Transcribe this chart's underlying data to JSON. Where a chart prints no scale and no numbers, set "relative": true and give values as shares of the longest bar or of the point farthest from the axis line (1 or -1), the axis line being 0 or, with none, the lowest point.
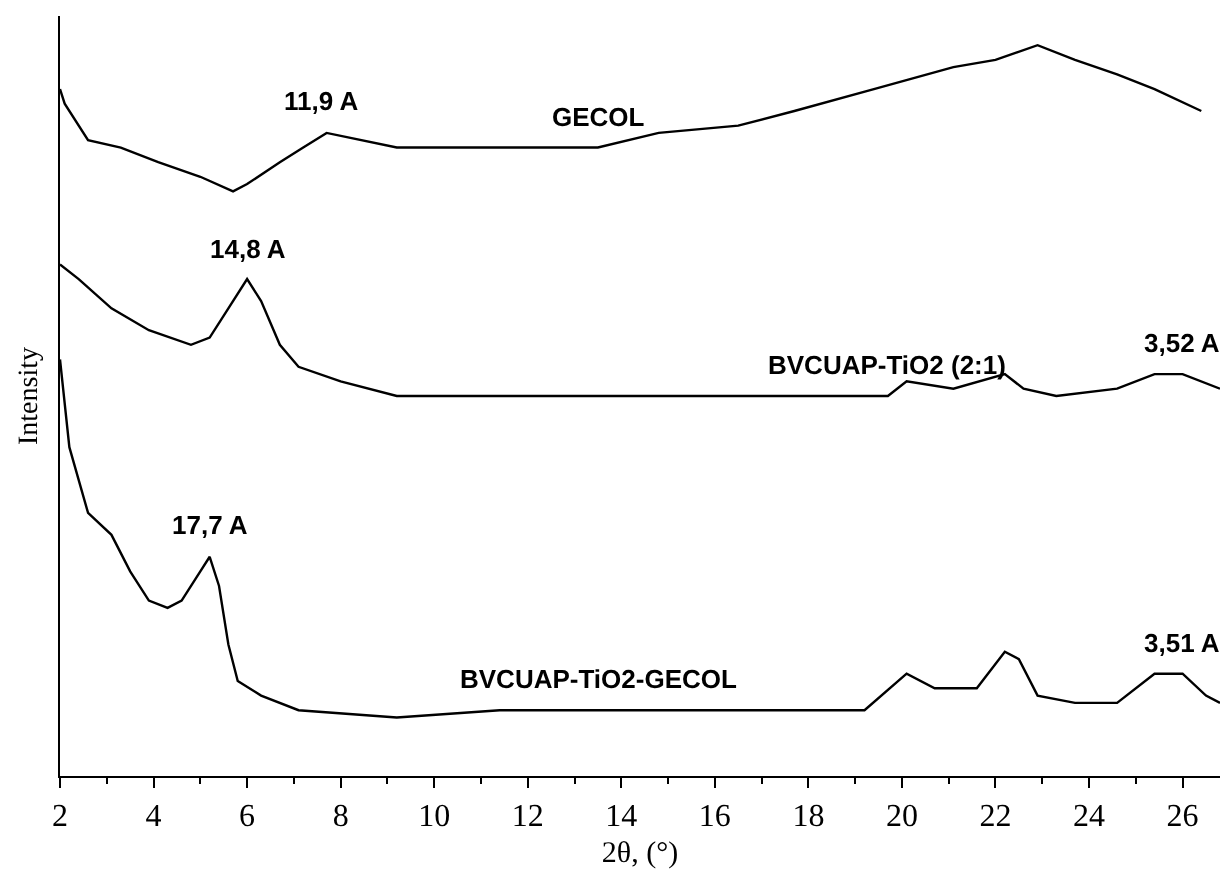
{
  "chart_data": {
    "type": "line",
    "relative": true,
    "xlabel": "2θ, (°)",
    "ylabel": "Intensity",
    "xlim": [
      2,
      26.8
    ],
    "xticks": [
      2,
      4,
      6,
      8,
      10,
      12,
      14,
      16,
      18,
      20,
      22,
      24,
      26
    ],
    "grid": false,
    "legend": false,
    "marker": "none",
    "line_style": "solid",
    "series": [
      {
        "name": "GECOL",
        "color": "#000000",
        "x": [
          2.0,
          2.1,
          2.6,
          3.3,
          4.1,
          5.0,
          5.7,
          6.0,
          6.7,
          7.2,
          7.7,
          9.2,
          11.4,
          13.5,
          14.8,
          16.5,
          17.7,
          19.4,
          21.1,
          22.0,
          22.9,
          23.7,
          24.6,
          25.4,
          26.4
        ],
        "values": [
          0.94,
          0.92,
          0.87,
          0.86,
          0.84,
          0.82,
          0.8,
          0.81,
          0.84,
          0.86,
          0.88,
          0.86,
          0.86,
          0.86,
          0.88,
          0.89,
          0.91,
          0.94,
          0.97,
          0.98,
          1.0,
          0.98,
          0.96,
          0.94,
          0.91
        ]
      },
      {
        "name": "BVCUAP-TiO2 (2:1)",
        "color": "#000000",
        "x": [
          2.0,
          2.4,
          3.1,
          3.9,
          4.8,
          5.2,
          5.6,
          6.0,
          6.3,
          6.7,
          7.1,
          8.0,
          9.2,
          13.5,
          17.7,
          19.7,
          20.1,
          21.1,
          22.2,
          22.6,
          23.3,
          24.6,
          25.4,
          26.0,
          26.8
        ],
        "values": [
          0.7,
          0.68,
          0.64,
          0.61,
          0.59,
          0.6,
          0.64,
          0.68,
          0.65,
          0.59,
          0.56,
          0.54,
          0.52,
          0.52,
          0.52,
          0.52,
          0.54,
          0.53,
          0.55,
          0.53,
          0.52,
          0.53,
          0.55,
          0.55,
          0.53
        ]
      },
      {
        "name": "BVCUAP-TiO2-GECOL",
        "color": "#000000",
        "x": [
          2.0,
          2.2,
          2.6,
          3.1,
          3.5,
          3.9,
          4.3,
          4.6,
          5.0,
          5.2,
          5.4,
          5.6,
          5.8,
          6.3,
          7.1,
          9.2,
          11.4,
          13.5,
          17.7,
          19.2,
          20.1,
          20.7,
          21.6,
          22.2,
          22.5,
          22.9,
          23.7,
          24.6,
          25.4,
          26.0,
          26.5,
          26.8
        ],
        "values": [
          0.57,
          0.45,
          0.36,
          0.33,
          0.28,
          0.24,
          0.23,
          0.24,
          0.28,
          0.3,
          0.26,
          0.18,
          0.13,
          0.11,
          0.09,
          0.08,
          0.09,
          0.09,
          0.09,
          0.09,
          0.14,
          0.12,
          0.12,
          0.17,
          0.16,
          0.11,
          0.1,
          0.1,
          0.14,
          0.14,
          0.11,
          0.1
        ]
      }
    ],
    "annotations": [
      {
        "text": "11,9 A",
        "x": 7.6,
        "y": 0.88
      },
      {
        "text": "14,8 A",
        "x": 6.0,
        "y": 0.68
      },
      {
        "text": "3,52 A",
        "x": 26.0,
        "y": 0.55
      },
      {
        "text": "17,7 A",
        "x": 5.2,
        "y": 0.3
      },
      {
        "text": "3,51 A",
        "x": 26.0,
        "y": 0.14
      }
    ]
  }
}
